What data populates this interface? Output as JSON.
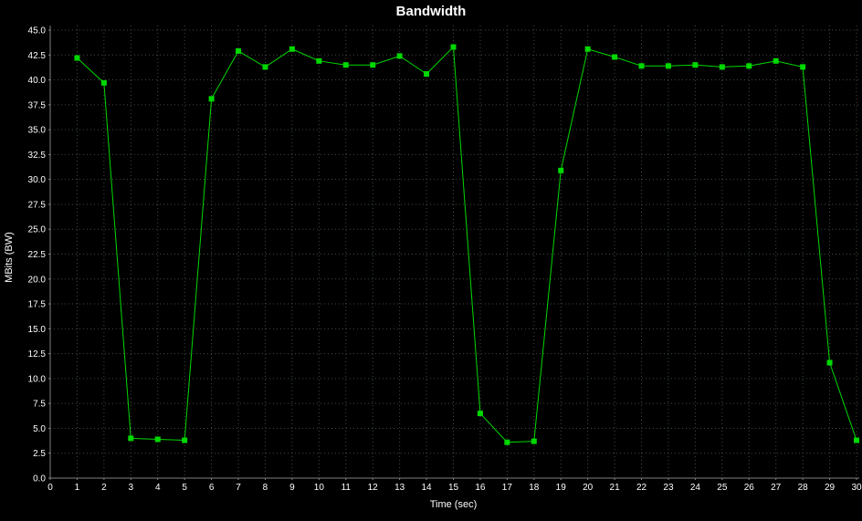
{
  "chart_data": {
    "type": "line",
    "title": "Bandwidth",
    "xlabel": "Time (sec)",
    "ylabel": "MBits (BW)",
    "xlim": [
      0,
      30
    ],
    "ylim": [
      0,
      45
    ],
    "x_tick_step": 1,
    "y_tick_step": 2.5,
    "grid": true,
    "legend": "none",
    "colors": {
      "background": "#000000",
      "text": "#ffffff",
      "grid": "#3e4e3e",
      "axis": "#808080",
      "series": "#00d800"
    },
    "series": [
      {
        "name": "Bandwidth",
        "marker": "square",
        "x": [
          1,
          2,
          3,
          4,
          5,
          6,
          7,
          8,
          9,
          10,
          11,
          12,
          13,
          14,
          15,
          16,
          17,
          18,
          19,
          20,
          21,
          22,
          23,
          24,
          25,
          26,
          27,
          28,
          29,
          30
        ],
        "y": [
          42.2,
          39.7,
          4.0,
          3.9,
          3.8,
          38.1,
          42.9,
          41.3,
          43.1,
          41.9,
          41.5,
          41.5,
          42.4,
          40.6,
          43.3,
          6.5,
          3.6,
          3.7,
          30.9,
          43.1,
          42.3,
          41.4,
          41.4,
          41.5,
          41.3,
          41.4,
          41.9,
          41.3,
          11.6,
          3.8
        ]
      }
    ]
  }
}
